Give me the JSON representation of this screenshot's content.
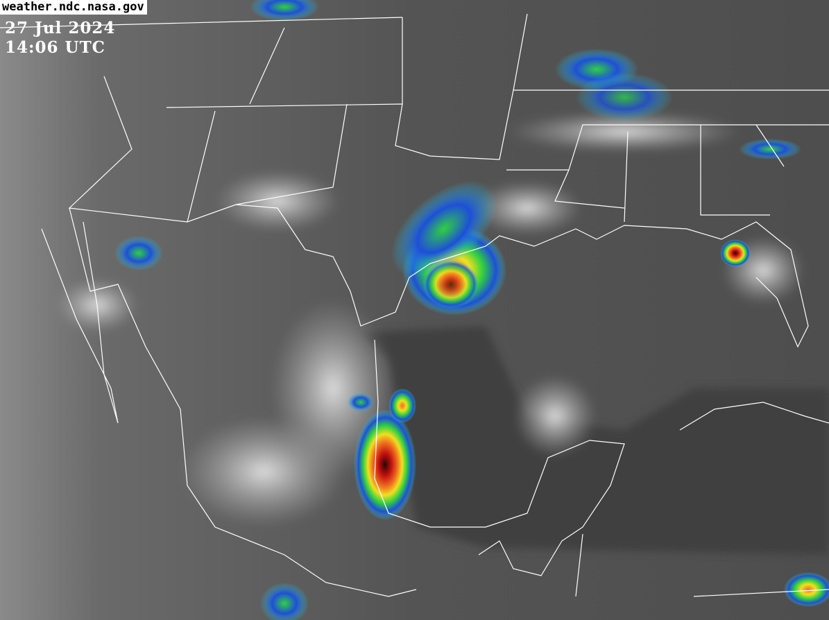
{
  "source": "weather.ndc.nasa.gov",
  "date": "27 Jul 2024",
  "time": "14:06 UTC",
  "colors": {
    "background": "#505050",
    "cloud": "#d8d8d8",
    "blue": "#1e4fd8",
    "cyan": "#28c8e0",
    "green": "#30d040",
    "yellow": "#f0e020",
    "orange": "#f07020",
    "red": "#c01010",
    "dark_red": "#3a0a0a"
  }
}
